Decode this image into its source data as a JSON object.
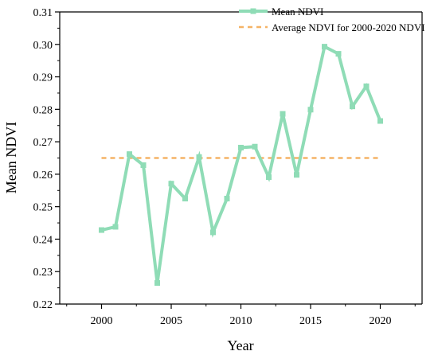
{
  "chart_data": {
    "type": "line",
    "title": "",
    "xlabel": "Year",
    "ylabel": "Mean NDVI",
    "xlim": [
      1997,
      2023
    ],
    "ylim": [
      0.22,
      0.31
    ],
    "xticks": [
      2000,
      2005,
      2010,
      2015,
      2020
    ],
    "xtick_labels": [
      "2000",
      "2005",
      "2010",
      "2015",
      "2020"
    ],
    "yticks": [
      0.22,
      0.23,
      0.24,
      0.25,
      0.26,
      0.27,
      0.28,
      0.29,
      0.3,
      0.31
    ],
    "ytick_labels": [
      "0.22",
      "0.23",
      "0.24",
      "0.25",
      "0.26",
      "0.27",
      "0.28",
      "0.29",
      "0.30",
      "0.31"
    ],
    "grid": false,
    "legend_position": "top-right",
    "series": [
      {
        "name": "Mean NDVI",
        "style": "line-with-square-markers",
        "color": "#8fdcb6",
        "x": [
          2000,
          2001,
          2002,
          2003,
          2004,
          2005,
          2006,
          2007,
          2008,
          2009,
          2010,
          2011,
          2012,
          2013,
          2014,
          2015,
          2016,
          2017,
          2018,
          2019,
          2020
        ],
        "values": [
          0.2428,
          0.2438,
          0.2662,
          0.2628,
          0.2265,
          0.2571,
          0.2525,
          0.2653,
          0.2421,
          0.2525,
          0.2682,
          0.2685,
          0.2591,
          0.2786,
          0.2598,
          0.2799,
          0.2993,
          0.2971,
          0.2809,
          0.2871,
          0.2764
        ]
      },
      {
        "name": "Average NDVI for 2000-2020 NDVI",
        "style": "dashed",
        "color": "#f5b366",
        "x": [
          2000,
          2020
        ],
        "values": [
          0.265,
          0.265
        ]
      }
    ]
  }
}
